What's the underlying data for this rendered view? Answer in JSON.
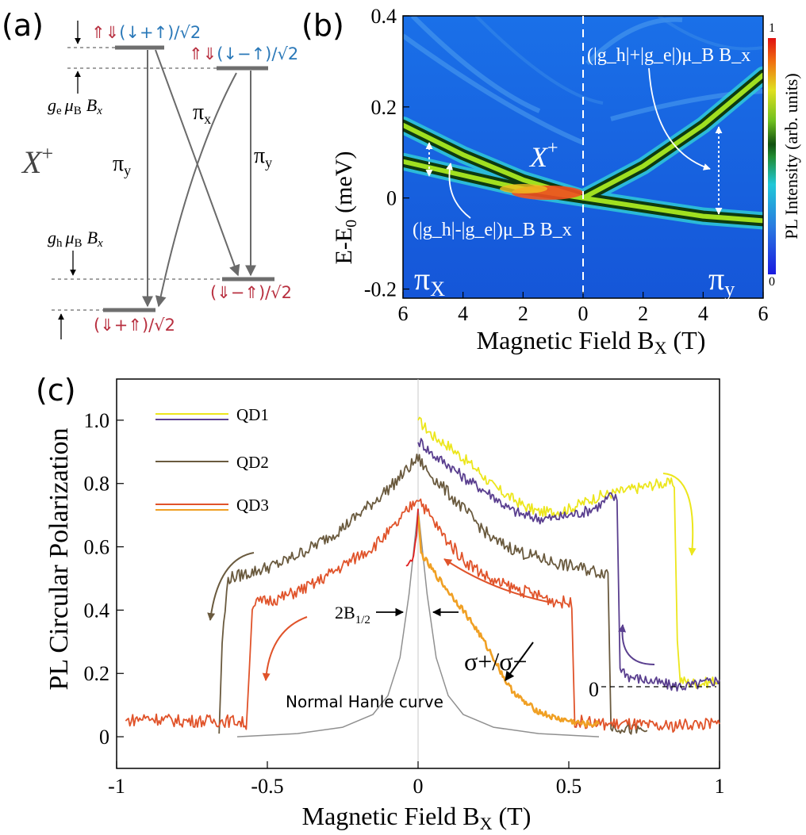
{
  "panels": {
    "a": {
      "label": "(a)",
      "trion": "X",
      "trion_sup": "+",
      "states": {
        "upper_left": {
          "spin": "⇑⇓",
          "text": "(↓+↑)/√2"
        },
        "upper_right": {
          "spin": "⇑⇓",
          "text": "(↓−↑)/√2"
        },
        "lower_right": {
          "text": "(⇓−⇑)/√2"
        },
        "lower_left": {
          "text": "(⇓+⇑)/√2"
        }
      },
      "ge_label": {
        "g": "g",
        "sub": "e",
        "mu": "μ",
        "musub": "B",
        "B": "B",
        "Bsub": "x"
      },
      "gh_label": {
        "g": "g",
        "sub": "h",
        "mu": "μ",
        "musub": "B",
        "B": "B",
        "Bsub": "x"
      },
      "transitions": {
        "pi_y_left": "π",
        "pi_y_left_sub": "y",
        "pi_x": "π",
        "pi_x_sub": "x",
        "pi_y_right": "π",
        "pi_y_right_sub": "y"
      },
      "colors": {
        "electron_state": "#2a78b8",
        "hole_state": "#b83040",
        "level": "#6e6e6e"
      }
    },
    "b": {
      "label": "(b)",
      "ylabel": "E-E",
      "ylabel_sub": "0",
      "ylabel_unit": "(meV)",
      "xlabel": "Magnetic Field  B",
      "xlabel_sub": "X",
      "xlabel_unit": "(T)",
      "x_ticks": [
        "6",
        "4",
        "2",
        "0",
        "2",
        "4",
        "6"
      ],
      "y_ticks": [
        "0.4",
        "0.2",
        "0",
        "-0.2"
      ],
      "trion": "X",
      "trion_sup": "+",
      "pol_left": "π",
      "pol_left_sub": "X",
      "pol_right": "π",
      "pol_right_sub": "y",
      "ann_sum": "(|g_h|+|g_e|)μ_B B_x",
      "ann_diff": "(|g_h|-|g_e|)μ_B B_x",
      "colorbar": {
        "label": "PL Intensity (arb. units)",
        "max": "1",
        "min": "0"
      }
    },
    "c": {
      "label": "(c)",
      "ylabel": "PL Circular  Polarization",
      "xlabel": "Magnetic Field  B",
      "xlabel_sub": "X",
      "xlabel_unit": "(T)",
      "sigma_label": "σ+/σ−",
      "hanle_label": "Normal Hanle curve",
      "half_width_label": "2B",
      "half_width_sub": "1/2",
      "zero_label": "0"
    }
  },
  "chart_data": [
    {
      "type": "heatmap",
      "panel": "b",
      "xlabel": "Magnetic Field  B_X (T)",
      "ylabel": "E-E_0 (meV)",
      "xlim": [
        -6,
        6
      ],
      "ylim": [
        -0.22,
        0.4
      ],
      "x_tick_labels": [
        "6",
        "4",
        "2",
        "0",
        "2",
        "4",
        "6"
      ],
      "branches": [
        {
          "x": [
            -6,
            -4,
            -2,
            0,
            2,
            4,
            6
          ],
          "y": [
            0.16,
            0.095,
            0.04,
            0.0,
            0.07,
            0.16,
            0.27
          ]
        },
        {
          "x": [
            -6,
            -4,
            -2,
            0,
            2,
            4,
            6
          ],
          "y": [
            0.08,
            0.05,
            0.02,
            0.0,
            -0.02,
            -0.04,
            -0.05
          ]
        }
      ],
      "colorbar": {
        "min": 0,
        "max": 1
      }
    },
    {
      "type": "line",
      "panel": "c",
      "xlabel": "Magnetic Field  B_X (T)",
      "ylabel": "PL Circular  Polarization",
      "xlim": [
        -1,
        1
      ],
      "ylim": [
        -0.1,
        1.13
      ],
      "x_ticks": [
        "-1",
        "-0.5",
        "0",
        "0.5",
        "1"
      ],
      "y_ticks": [
        "0",
        "0.2",
        "0.4",
        "0.6",
        "0.8",
        "1.0"
      ],
      "legend_placement": "top-left",
      "series": [
        {
          "name": "QD1",
          "color": "#ece61c",
          "x": [
            0.0,
            0.01,
            0.05,
            0.1,
            0.15,
            0.2,
            0.25,
            0.3,
            0.35,
            0.4,
            0.45,
            0.5,
            0.55,
            0.6,
            0.65,
            0.7,
            0.75,
            0.8,
            0.84,
            0.85,
            0.86,
            0.87,
            0.9,
            0.95,
            1.0
          ],
          "y": [
            1.0,
            0.99,
            0.95,
            0.92,
            0.88,
            0.84,
            0.79,
            0.76,
            0.73,
            0.71,
            0.71,
            0.72,
            0.74,
            0.76,
            0.77,
            0.78,
            0.79,
            0.8,
            0.8,
            0.8,
            0.3,
            0.18,
            0.17,
            0.17,
            0.18
          ]
        },
        {
          "name": "QD1",
          "color": "#5a3f8f",
          "x": [
            0.0,
            0.01,
            0.05,
            0.1,
            0.15,
            0.2,
            0.25,
            0.3,
            0.35,
            0.4,
            0.45,
            0.5,
            0.55,
            0.6,
            0.64,
            0.66,
            0.67,
            0.7,
            0.75,
            0.8,
            0.85,
            0.9,
            0.95,
            1.0
          ],
          "y": [
            0.93,
            0.93,
            0.89,
            0.86,
            0.82,
            0.79,
            0.76,
            0.72,
            0.7,
            0.69,
            0.69,
            0.7,
            0.71,
            0.73,
            0.76,
            0.75,
            0.22,
            0.19,
            0.18,
            0.17,
            0.16,
            0.16,
            0.17,
            0.18
          ]
        },
        {
          "name": "QD2",
          "color": "#6a5a3e",
          "x": [
            -0.66,
            -0.65,
            -0.63,
            -0.55,
            -0.45,
            -0.35,
            -0.25,
            -0.15,
            -0.08,
            -0.03,
            0.0,
            0.03,
            0.08,
            0.15,
            0.25,
            0.35,
            0.45,
            0.55,
            0.6,
            0.63,
            0.64,
            0.68,
            0.72,
            0.76
          ],
          "y": [
            0.01,
            0.3,
            0.5,
            0.52,
            0.55,
            0.6,
            0.66,
            0.74,
            0.8,
            0.85,
            0.88,
            0.84,
            0.79,
            0.72,
            0.62,
            0.58,
            0.55,
            0.53,
            0.52,
            0.52,
            0.03,
            0.03,
            0.02,
            0.02
          ]
        },
        {
          "name": "QD3",
          "color": "#e0532a",
          "x": [
            -0.97,
            -0.9,
            -0.8,
            -0.7,
            -0.6,
            -0.57,
            -0.56,
            -0.55,
            -0.45,
            -0.35,
            -0.25,
            -0.15,
            -0.08,
            -0.03,
            0.0,
            0.03,
            0.08,
            0.15,
            0.25,
            0.35,
            0.45,
            0.51,
            0.52,
            0.6,
            0.7,
            0.8,
            0.9,
            1.0
          ],
          "y": [
            0.05,
            0.06,
            0.05,
            0.05,
            0.05,
            0.04,
            0.2,
            0.42,
            0.44,
            0.48,
            0.54,
            0.6,
            0.66,
            0.72,
            0.76,
            0.71,
            0.64,
            0.56,
            0.49,
            0.46,
            0.43,
            0.42,
            0.05,
            0.04,
            0.04,
            0.03,
            0.04,
            0.04
          ]
        },
        {
          "name": "QD3",
          "color": "#f0a024",
          "x": [
            0.0,
            0.005,
            0.01,
            0.03,
            0.06,
            0.1,
            0.15,
            0.2,
            0.25,
            0.3,
            0.35,
            0.4,
            0.45,
            0.5,
            0.55,
            0.6
          ],
          "y": [
            0.7,
            0.64,
            0.58,
            0.55,
            0.51,
            0.46,
            0.4,
            0.33,
            0.25,
            0.16,
            0.11,
            0.08,
            0.06,
            0.05,
            0.04,
            0.04
          ]
        },
        {
          "color": "#e02020",
          "x": [
            -0.04,
            -0.035,
            -0.03,
            -0.025,
            -0.02,
            -0.015,
            -0.01,
            -0.005,
            0.0
          ],
          "y": [
            0.54,
            0.55,
            0.55,
            0.56,
            0.55,
            0.57,
            0.6,
            0.64,
            0.72
          ]
        },
        {
          "color": "#909090",
          "x": [
            -0.6,
            -0.4,
            -0.25,
            -0.15,
            -0.1,
            -0.06,
            -0.03,
            0.0,
            0.03,
            0.06,
            0.1,
            0.15,
            0.25,
            0.4,
            0.6
          ],
          "y": [
            0.0,
            0.01,
            0.03,
            0.07,
            0.13,
            0.25,
            0.45,
            0.72,
            0.45,
            0.25,
            0.13,
            0.07,
            0.03,
            0.01,
            0.0
          ]
        }
      ]
    }
  ]
}
